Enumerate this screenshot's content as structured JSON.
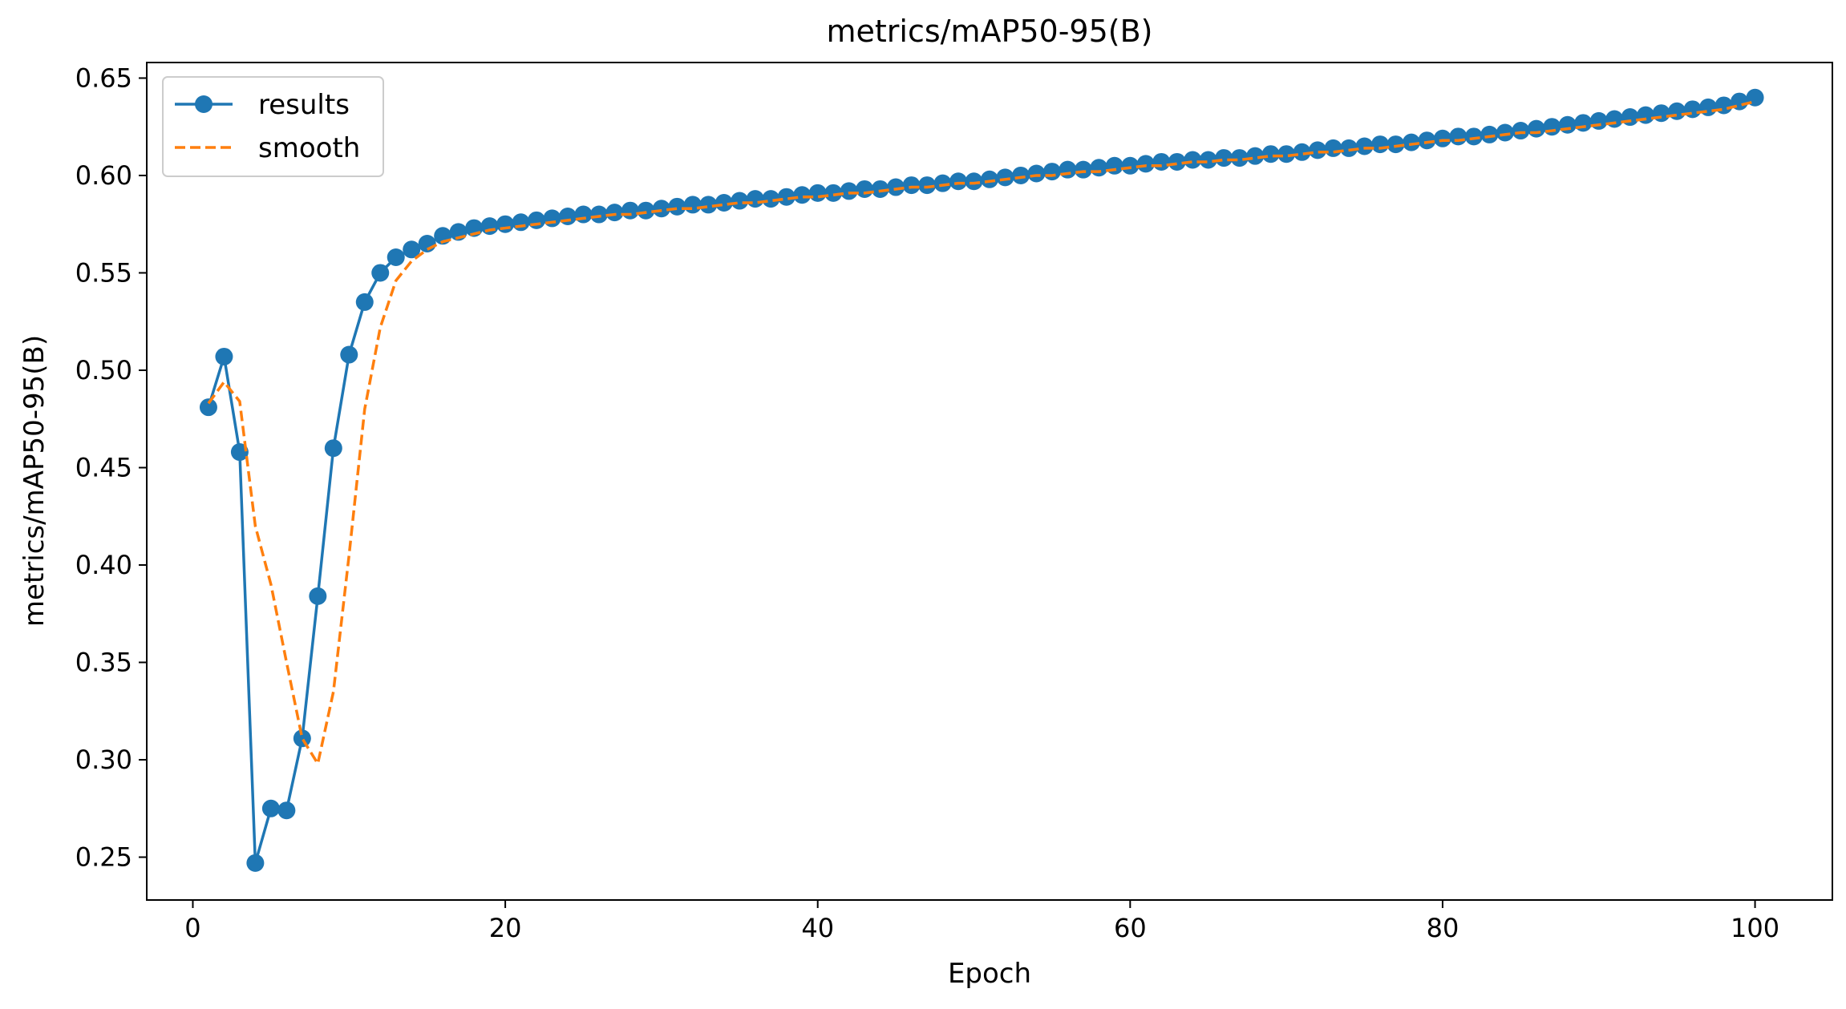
{
  "chart_data": {
    "type": "line",
    "title": "metrics/mAP50-95(B)",
    "xlabel": "Epoch",
    "ylabel": "metrics/mAP50-95(B)",
    "xlim": [
      -2.95,
      104.95
    ],
    "ylim": [
      0.228,
      0.658
    ],
    "x_ticks": [
      0,
      20,
      40,
      60,
      80,
      100
    ],
    "y_ticks": [
      0.25,
      0.3,
      0.35,
      0.4,
      0.45,
      0.5,
      0.55,
      0.6,
      0.65
    ],
    "x_tick_labels": [
      "0",
      "20",
      "40",
      "60",
      "80",
      "100"
    ],
    "y_tick_labels": [
      "0.25",
      "0.30",
      "0.35",
      "0.40",
      "0.45",
      "0.50",
      "0.55",
      "0.60",
      "0.65"
    ],
    "grid": false,
    "legend_position": "upper-left",
    "series": [
      {
        "name": "results",
        "style": "line-with-circle-markers",
        "color": "#1f77b4",
        "x": [
          1,
          2,
          3,
          4,
          5,
          6,
          7,
          8,
          9,
          10,
          11,
          12,
          13,
          14,
          15,
          16,
          17,
          18,
          19,
          20,
          21,
          22,
          23,
          24,
          25,
          26,
          27,
          28,
          29,
          30,
          31,
          32,
          33,
          34,
          35,
          36,
          37,
          38,
          39,
          40,
          41,
          42,
          43,
          44,
          45,
          46,
          47,
          48,
          49,
          50,
          51,
          52,
          53,
          54,
          55,
          56,
          57,
          58,
          59,
          60,
          61,
          62,
          63,
          64,
          65,
          66,
          67,
          68,
          69,
          70,
          71,
          72,
          73,
          74,
          75,
          76,
          77,
          78,
          79,
          80,
          81,
          82,
          83,
          84,
          85,
          86,
          87,
          88,
          89,
          90,
          91,
          92,
          93,
          94,
          95,
          96,
          97,
          98,
          99,
          100
        ],
        "values": [
          0.481,
          0.507,
          0.458,
          0.247,
          0.275,
          0.274,
          0.311,
          0.384,
          0.46,
          0.508,
          0.535,
          0.55,
          0.558,
          0.562,
          0.565,
          0.569,
          0.571,
          0.573,
          0.574,
          0.575,
          0.576,
          0.577,
          0.578,
          0.579,
          0.58,
          0.58,
          0.581,
          0.582,
          0.582,
          0.583,
          0.584,
          0.585,
          0.585,
          0.586,
          0.587,
          0.588,
          0.588,
          0.589,
          0.59,
          0.591,
          0.591,
          0.592,
          0.593,
          0.593,
          0.594,
          0.595,
          0.595,
          0.596,
          0.597,
          0.597,
          0.598,
          0.599,
          0.6,
          0.601,
          0.602,
          0.603,
          0.603,
          0.604,
          0.605,
          0.605,
          0.606,
          0.607,
          0.607,
          0.608,
          0.608,
          0.609,
          0.609,
          0.61,
          0.611,
          0.611,
          0.612,
          0.613,
          0.614,
          0.614,
          0.615,
          0.616,
          0.616,
          0.617,
          0.618,
          0.619,
          0.62,
          0.62,
          0.621,
          0.622,
          0.623,
          0.624,
          0.625,
          0.626,
          0.627,
          0.628,
          0.629,
          0.63,
          0.631,
          0.632,
          0.633,
          0.634,
          0.635,
          0.636,
          0.638,
          0.64
        ]
      },
      {
        "name": "smooth",
        "style": "dashed-line",
        "color": "#ff7f0e",
        "x": [
          1,
          2,
          3,
          4,
          5,
          6,
          7,
          8,
          9,
          10,
          11,
          12,
          13,
          14,
          15,
          16,
          17,
          18,
          19,
          20,
          21,
          22,
          23,
          24,
          25,
          26,
          27,
          28,
          29,
          30,
          31,
          32,
          33,
          34,
          35,
          36,
          37,
          38,
          39,
          40,
          41,
          42,
          43,
          44,
          45,
          46,
          47,
          48,
          49,
          50,
          51,
          52,
          53,
          54,
          55,
          56,
          57,
          58,
          59,
          60,
          61,
          62,
          63,
          64,
          65,
          66,
          67,
          68,
          69,
          70,
          71,
          72,
          73,
          74,
          75,
          76,
          77,
          78,
          79,
          80,
          81,
          82,
          83,
          84,
          85,
          86,
          87,
          88,
          89,
          90,
          91,
          92,
          93,
          94,
          95,
          96,
          97,
          98,
          99,
          100
        ],
        "values": [
          0.483,
          0.494,
          0.484,
          0.42,
          0.39,
          0.35,
          0.311,
          0.298,
          0.335,
          0.405,
          0.48,
          0.522,
          0.546,
          0.556,
          0.562,
          0.566,
          0.568,
          0.57,
          0.572,
          0.573,
          0.574,
          0.575,
          0.576,
          0.577,
          0.578,
          0.579,
          0.58,
          0.58,
          0.581,
          0.582,
          0.583,
          0.583,
          0.584,
          0.585,
          0.586,
          0.586,
          0.587,
          0.588,
          0.589,
          0.589,
          0.59,
          0.591,
          0.591,
          0.592,
          0.593,
          0.594,
          0.594,
          0.595,
          0.596,
          0.596,
          0.597,
          0.598,
          0.599,
          0.6,
          0.6,
          0.601,
          0.602,
          0.602,
          0.603,
          0.604,
          0.605,
          0.605,
          0.606,
          0.607,
          0.607,
          0.608,
          0.608,
          0.609,
          0.61,
          0.61,
          0.611,
          0.612,
          0.612,
          0.613,
          0.614,
          0.614,
          0.615,
          0.616,
          0.617,
          0.618,
          0.618,
          0.619,
          0.62,
          0.621,
          0.622,
          0.622,
          0.623,
          0.624,
          0.625,
          0.626,
          0.627,
          0.628,
          0.629,
          0.63,
          0.631,
          0.632,
          0.633,
          0.634,
          0.636,
          0.638
        ]
      }
    ]
  }
}
